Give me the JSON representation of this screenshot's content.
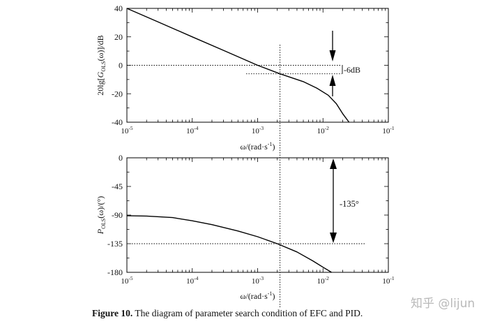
{
  "chart_data": [
    {
      "type": "line",
      "x_scale": "log",
      "xlim": [
        1e-05,
        0.1
      ],
      "ylim": [
        -40,
        40
      ],
      "y_ticks": [
        40,
        20,
        0,
        -20,
        -40
      ],
      "x_tick_labels": [
        {
          "base": "10",
          "exp": "-5"
        },
        {
          "base": "10",
          "exp": "-4"
        },
        {
          "base": "10",
          "exp": "-3"
        },
        {
          "base": "10",
          "exp": "-2"
        },
        {
          "base": "10",
          "exp": "-1"
        }
      ],
      "xlabel": {
        "main": "ω/(rad·s",
        "sup": "-1",
        "tail": ")"
      },
      "ylabel": {
        "pre": "20lg[",
        "g": "G",
        "sub": "OLS",
        "post": "(ω)]/dB"
      },
      "series": [
        {
          "x": [
            1e-05,
            3e-05,
            0.0001,
            0.0003,
            0.001,
            0.0022,
            0.005,
            0.008,
            0.012,
            0.016,
            0.02,
            0.025
          ],
          "y": [
            40,
            30.5,
            20,
            10.5,
            0,
            -6,
            -11.5,
            -16,
            -21,
            -27,
            -34,
            -40
          ]
        }
      ],
      "reference_lines": {
        "horizontal": [
          0,
          -6
        ],
        "vertical_x": 0.0022
      },
      "annotation": "-6dB",
      "grid": false
    },
    {
      "type": "line",
      "x_scale": "log",
      "xlim": [
        1e-05,
        0.1
      ],
      "ylim": [
        -180,
        0
      ],
      "y_ticks": [
        0,
        -45,
        -90,
        -135,
        -180
      ],
      "x_tick_labels": [
        {
          "base": "10",
          "exp": "-5"
        },
        {
          "base": "10",
          "exp": "-4"
        },
        {
          "base": "10",
          "exp": "-3"
        },
        {
          "base": "10",
          "exp": "-2"
        },
        {
          "base": "10",
          "exp": "-1"
        }
      ],
      "xlabel": {
        "main": "ω/(rad·s",
        "sup": "-1",
        "tail": ")"
      },
      "ylabel": {
        "p": "P",
        "sub": "OLS",
        "post": "(ω)/(°)"
      },
      "series": [
        {
          "x": [
            1e-05,
            2e-05,
            5e-05,
            0.0001,
            0.0002,
            0.0005,
            0.001,
            0.002,
            0.004,
            0.007,
            0.01,
            0.0135
          ],
          "y": [
            -91,
            -91.5,
            -94,
            -99,
            -105,
            -115,
            -124,
            -135,
            -148,
            -162,
            -172,
            -180
          ]
        }
      ],
      "reference_lines": {
        "horizontal": [
          -135
        ],
        "vertical_x": 0.0022
      },
      "annotation": "-135°",
      "grid": false
    }
  ],
  "caption": {
    "label": "Figure 10.",
    "text": " The diagram of parameter search condition of EFC and PID."
  },
  "watermark": "知乎 @lijun",
  "colors": {
    "line": "#000000",
    "background": "#ffffff",
    "watermark": "#b9b9b9"
  }
}
